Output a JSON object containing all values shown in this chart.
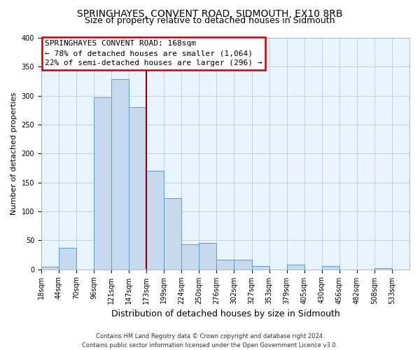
{
  "title": "SPRINGHAYES, CONVENT ROAD, SIDMOUTH, EX10 8RB",
  "subtitle": "Size of property relative to detached houses in Sidmouth",
  "xlabel": "Distribution of detached houses by size in Sidmouth",
  "ylabel": "Number of detached properties",
  "footer_line1": "Contains HM Land Registry data © Crown copyright and database right 2024.",
  "footer_line2": "Contains public sector information licensed under the Open Government Licence v3.0.",
  "bin_labels": [
    "18sqm",
    "44sqm",
    "70sqm",
    "96sqm",
    "121sqm",
    "147sqm",
    "173sqm",
    "199sqm",
    "224sqm",
    "250sqm",
    "276sqm",
    "302sqm",
    "327sqm",
    "353sqm",
    "379sqm",
    "405sqm",
    "430sqm",
    "456sqm",
    "482sqm",
    "508sqm",
    "533sqm"
  ],
  "bar_values": [
    4,
    37,
    0,
    297,
    329,
    280,
    170,
    123,
    43,
    46,
    16,
    17,
    5,
    0,
    8,
    0,
    6,
    0,
    0,
    2,
    0
  ],
  "bar_color": "#C6D9EF",
  "bar_edge_color": "#5B9BD5",
  "annotation_title": "SPRINGHAYES CONVENT ROAD: 168sqm",
  "annotation_line2": "← 78% of detached houses are smaller (1,064)",
  "annotation_line3": "22% of semi-detached houses are larger (296) →",
  "annotation_box_color": "#ffffff",
  "annotation_box_edge": "#cc0000",
  "vline_color": "#8B0000",
  "vline_bin_index": 6,
  "ylim": [
    0,
    400
  ],
  "yticks": [
    0,
    50,
    100,
    150,
    200,
    250,
    300,
    350,
    400
  ],
  "bg_color": "#E8F4FF",
  "fig_bg_color": "#ffffff",
  "grid_color": "#c0c8d8",
  "title_fontsize": 10,
  "subtitle_fontsize": 9,
  "xlabel_fontsize": 9,
  "ylabel_fontsize": 8,
  "tick_fontsize": 7,
  "annotation_fontsize": 8,
  "footer_fontsize": 6
}
